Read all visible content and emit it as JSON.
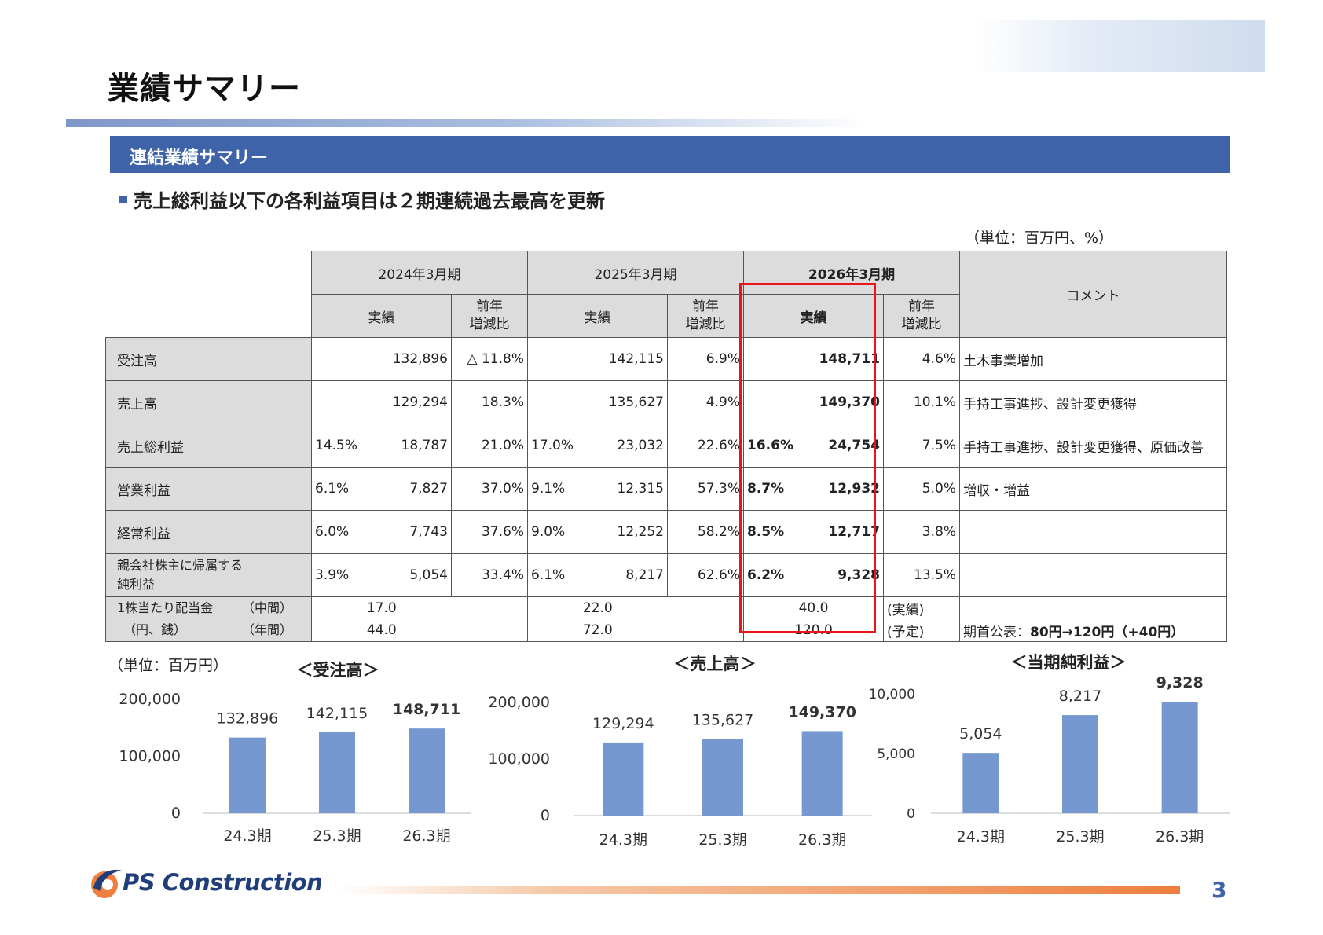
{
  "title": "業績サマリー",
  "section_title": "連結業績サマリー",
  "headline": "売上総利益以下の各利益項目は２期連続過去最高を更新",
  "unit_label": "（単位：百万円、%）",
  "table": {
    "periods": [
      "2024年3月期",
      "2025年3月期",
      "2026年3月期"
    ],
    "sub_actual": "実績",
    "sub_yoy_1": "前年",
    "sub_yoy_2": "増減比",
    "comment_header": "コメント",
    "rows": [
      {
        "label": "受注高",
        "p1_margin": "",
        "p1": "132,896",
        "p1_yoy": "△ 11.8%",
        "p2_margin": "",
        "p2": "142,115",
        "p2_yoy": "6.9%",
        "p3_margin": "",
        "p3": "148,711",
        "p3_yoy": "4.6%",
        "comment": "土木事業増加"
      },
      {
        "label": "売上高",
        "p1_margin": "",
        "p1": "129,294",
        "p1_yoy": "18.3%",
        "p2_margin": "",
        "p2": "135,627",
        "p2_yoy": "4.9%",
        "p3_margin": "",
        "p3": "149,370",
        "p3_yoy": "10.1%",
        "comment": "手持工事進捗、設計変更獲得"
      },
      {
        "label": "売上総利益",
        "p1_margin": "14.5%",
        "p1": "18,787",
        "p1_yoy": "21.0%",
        "p2_margin": "17.0%",
        "p2": "23,032",
        "p2_yoy": "22.6%",
        "p3_margin": "16.6%",
        "p3": "24,754",
        "p3_yoy": "7.5%",
        "comment": "手持工事進捗、設計変更獲得、原価改善"
      },
      {
        "label": "営業利益",
        "p1_margin": "6.1%",
        "p1": "7,827",
        "p1_yoy": "37.0%",
        "p2_margin": "9.1%",
        "p2": "12,315",
        "p2_yoy": "57.3%",
        "p3_margin": "8.7%",
        "p3": "12,932",
        "p3_yoy": "5.0%",
        "comment": "増収・増益"
      },
      {
        "label": "経常利益",
        "p1_margin": "6.0%",
        "p1": "7,743",
        "p1_yoy": "37.6%",
        "p2_margin": "9.0%",
        "p2": "12,252",
        "p2_yoy": "58.2%",
        "p3_margin": "8.5%",
        "p3": "12,717",
        "p3_yoy": "3.8%",
        "comment": ""
      }
    ],
    "net_income": {
      "label_1": "親会社株主に帰属する",
      "label_2": "純利益",
      "p1_margin": "3.9%",
      "p1": "5,054",
      "p1_yoy": "33.4%",
      "p2_margin": "6.1%",
      "p2": "8,217",
      "p2_yoy": "62.6%",
      "p3_margin": "6.2%",
      "p3": "9,328",
      "p3_yoy": "13.5%",
      "comment": ""
    },
    "dividend": {
      "label_1": "1株当たり配当金",
      "label_1b": "（中間）",
      "label_2": "（円、銭）",
      "label_2b": "（年間）",
      "interim": {
        "p1": "17.0",
        "p2": "22.0",
        "p3": "40.0",
        "p3_note": "(実績)"
      },
      "annual": {
        "p1": "44.0",
        "p2": "72.0",
        "p3": "120.0",
        "p3_note": "(予定)"
      },
      "comment_prefix": "期首公表：",
      "comment_bold": "80円→120円（+40円）"
    }
  },
  "chart_unit": "（単位：百万円）",
  "chart_data": [
    {
      "type": "bar",
      "title": "＜受注高＞",
      "categories": [
        "24.3期",
        "25.3期",
        "26.3期"
      ],
      "values": [
        132896,
        142115,
        148711
      ],
      "labels": [
        "132,896",
        "142,115",
        "148,711"
      ],
      "yticks": [
        "0",
        "100,000",
        "200,000"
      ],
      "ylim": [
        0,
        200000
      ],
      "color": "#7598d0"
    },
    {
      "type": "bar",
      "title": "＜売上高＞",
      "categories": [
        "24.3期",
        "25.3期",
        "26.3期"
      ],
      "values": [
        129294,
        135627,
        149370
      ],
      "labels": [
        "129,294",
        "135,627",
        "149,370"
      ],
      "yticks": [
        "0",
        "100,000",
        "200,000"
      ],
      "ylim": [
        0,
        200000
      ],
      "color": "#7598d0"
    },
    {
      "type": "bar",
      "title": "＜当期純利益＞",
      "categories": [
        "24.3期",
        "25.3期",
        "26.3期"
      ],
      "values": [
        5054,
        8217,
        9328
      ],
      "labels": [
        "5,054",
        "8,217",
        "9,328"
      ],
      "yticks": [
        "0",
        "5,000",
        "10,000"
      ],
      "ylim": [
        0,
        10000
      ],
      "color": "#7598d0"
    }
  ],
  "logo_text": "PS Construction",
  "page_number": "3",
  "colors": {
    "accent": "#3f63a8",
    "highlight": "#e8161b",
    "bar": "#7598d0",
    "footer": "#ee7f3e"
  }
}
